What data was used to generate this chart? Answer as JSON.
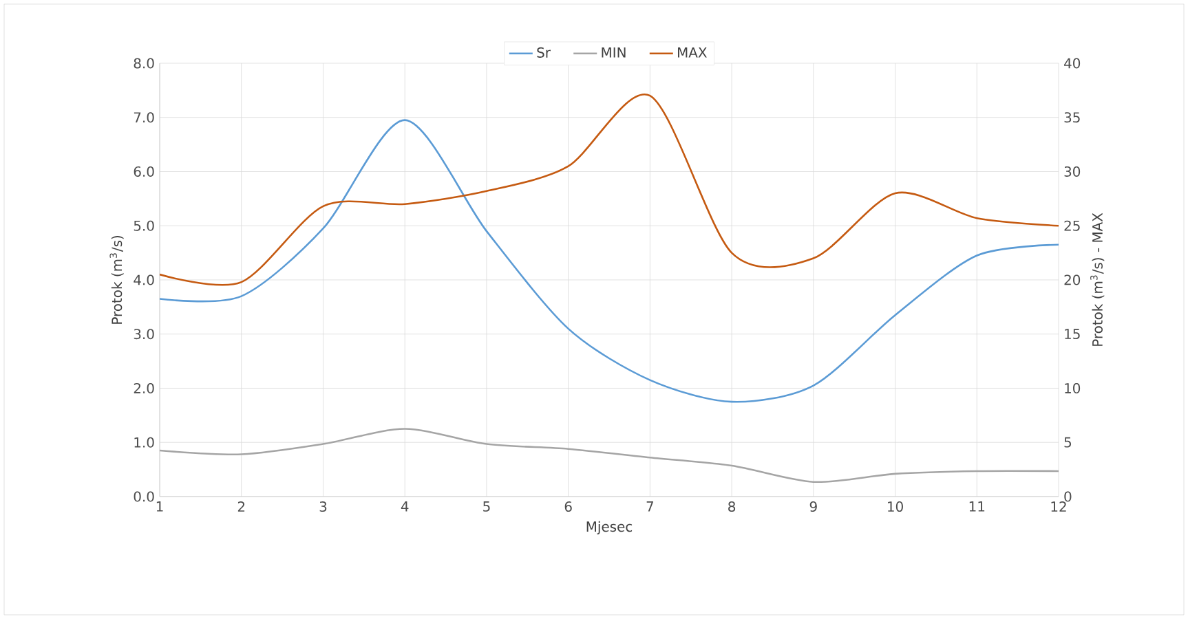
{
  "chart_data": {
    "type": "line",
    "xlabel": "Mjesec",
    "ylabel": "Protok (m$^{3}$/s)",
    "y2label": "Protok (m$^{3}$/s) - MAX",
    "x": [
      1,
      2,
      3,
      4,
      5,
      6,
      7,
      8,
      9,
      10,
      11,
      12
    ],
    "series": [
      {
        "name": "Sr",
        "color": "#5b9bd5",
        "values": [
          3.65,
          3.7,
          4.95,
          6.95,
          4.9,
          3.1,
          2.15,
          1.75,
          2.05,
          3.35,
          4.45,
          4.65
        ]
      },
      {
        "name": "MIN",
        "color": "#a5a5a5",
        "values": [
          0.85,
          0.78,
          0.97,
          1.25,
          0.97,
          0.88,
          0.72,
          0.57,
          0.27,
          0.42,
          0.47,
          0.47
        ]
      },
      {
        "name": "MAX",
        "color": "#c55a11",
        "axis": "y2",
        "values": [
          20.5,
          19.8,
          26.8,
          27,
          28.2,
          30.5,
          37,
          22.5,
          22,
          28,
          25.7,
          25
        ]
      }
    ],
    "xlim": [
      1,
      12
    ],
    "xticks": [
      1,
      2,
      3,
      4,
      5,
      6,
      7,
      8,
      9,
      10,
      11,
      12
    ],
    "ylim": [
      0,
      8
    ],
    "yticks": [
      {
        "value": 0,
        "label": "0.0"
      },
      {
        "value": 1,
        "label": "1.0"
      },
      {
        "value": 2,
        "label": "2.0"
      },
      {
        "value": 3,
        "label": "3.0"
      },
      {
        "value": 4,
        "label": "4.0"
      },
      {
        "value": 5,
        "label": "5.0"
      },
      {
        "value": 6,
        "label": "6.0"
      },
      {
        "value": 7,
        "label": "7.0"
      },
      {
        "value": 8,
        "label": "8.0"
      }
    ],
    "y2lim": [
      0,
      40
    ],
    "y2ticks": [
      0,
      5,
      10,
      15,
      20,
      25,
      30,
      35,
      40
    ],
    "grid": true,
    "legend": "top",
    "marker": "none",
    "line_style": "solid"
  }
}
